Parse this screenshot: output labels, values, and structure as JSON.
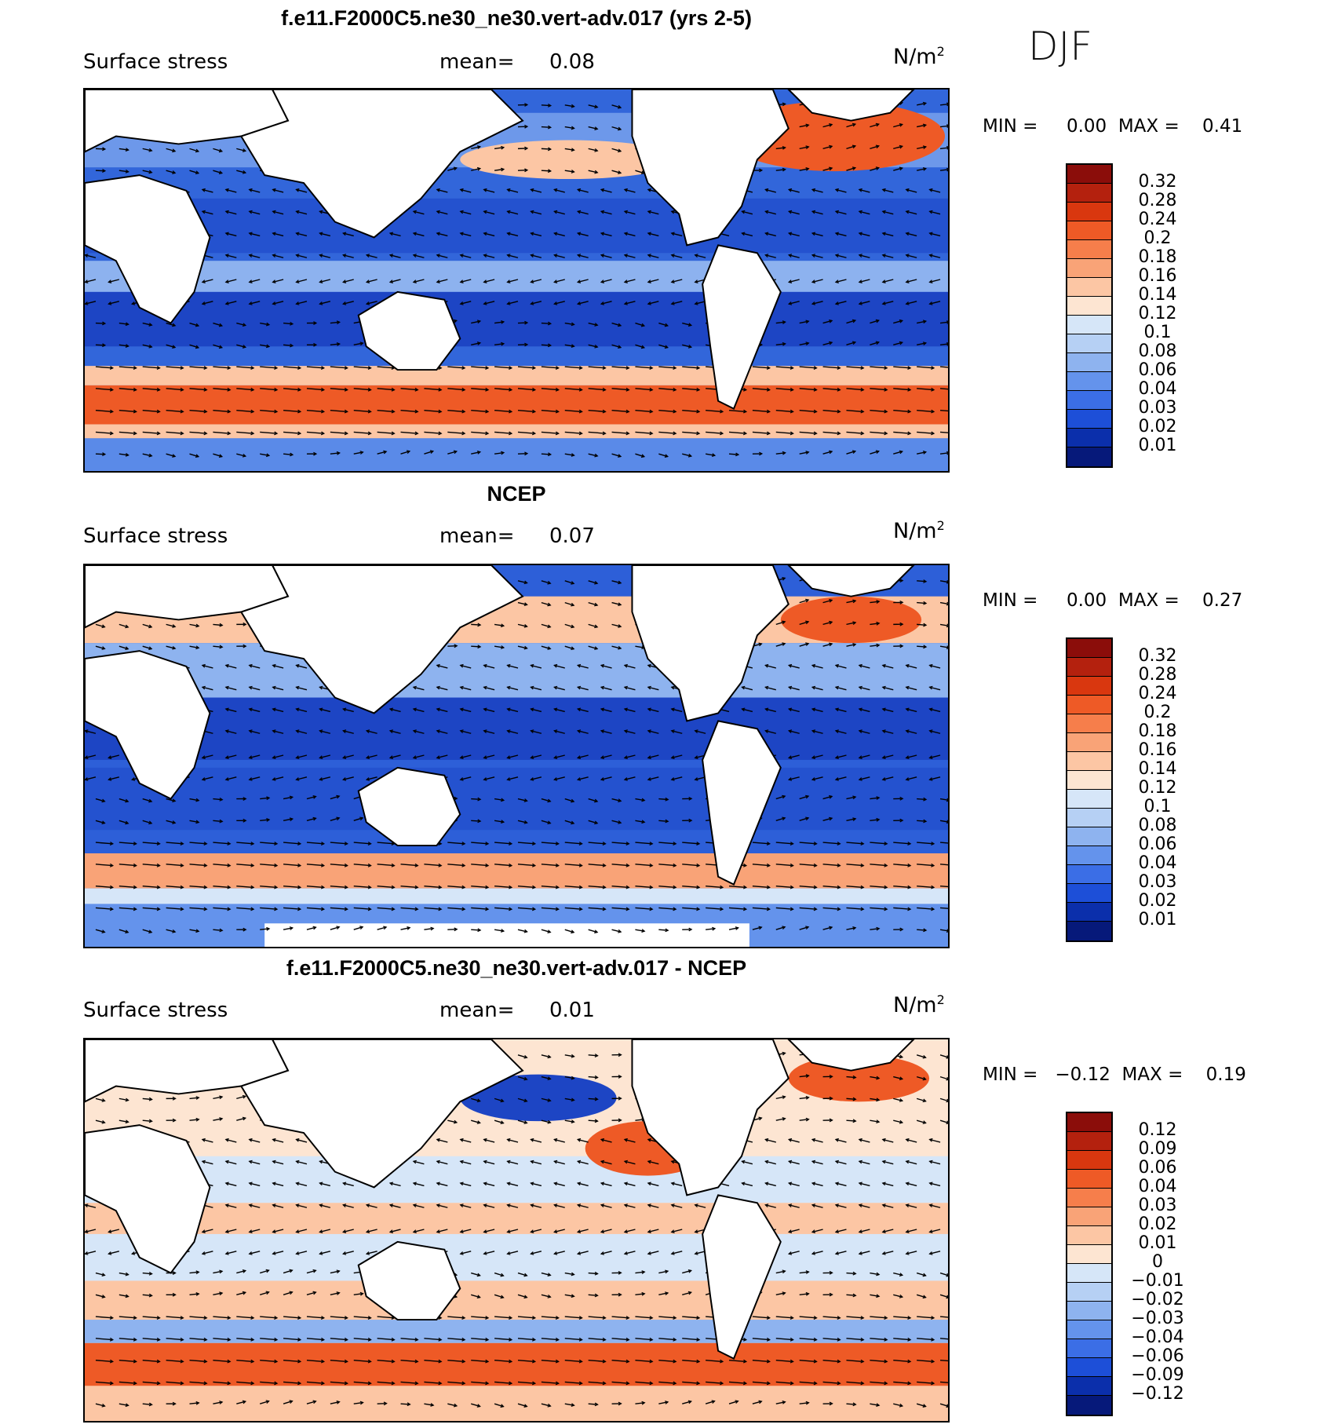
{
  "season": "DJF",
  "units_base": "N/m",
  "units_exp": "2",
  "panels": [
    {
      "title": "f.e11.F2000C5.ne30_ne30.vert-adv.017 (yrs 2-5)",
      "field": "Surface stress",
      "mean_label": "mean=",
      "mean": "0.08",
      "min_label": "MIN =",
      "min": "0.00",
      "max_label": "MAX =",
      "max": "0.41",
      "levels": [
        "0.32",
        "0.28",
        "0.24",
        "0.2",
        "0.18",
        "0.16",
        "0.14",
        "0.12",
        "0.1",
        "0.08",
        "0.06",
        "0.04",
        "0.03",
        "0.02",
        "0.01"
      ],
      "colors": [
        "#8b0d0a",
        "#b4210e",
        "#d9370f",
        "#ee5a26",
        "#f67e4b",
        "#f9a377",
        "#fcc6a4",
        "#fde5d2",
        "#d6e6f8",
        "#b6d0f4",
        "#8eb3ef",
        "#6493ec",
        "#3b6ee6",
        "#1d4fd8",
        "#0b2fab",
        "#06197a"
      ]
    },
    {
      "title": "NCEP",
      "field": "Surface stress",
      "mean_label": "mean=",
      "mean": "0.07",
      "min_label": "MIN =",
      "min": "0.00",
      "max_label": "MAX =",
      "max": "0.27",
      "levels": [
        "0.32",
        "0.28",
        "0.24",
        "0.2",
        "0.18",
        "0.16",
        "0.14",
        "0.12",
        "0.1",
        "0.08",
        "0.06",
        "0.04",
        "0.03",
        "0.02",
        "0.01"
      ],
      "colors": [
        "#8b0d0a",
        "#b4210e",
        "#d9370f",
        "#ee5a26",
        "#f67e4b",
        "#f9a377",
        "#fcc6a4",
        "#fde5d2",
        "#d6e6f8",
        "#b6d0f4",
        "#8eb3ef",
        "#6493ec",
        "#3b6ee6",
        "#1d4fd8",
        "#0b2fab",
        "#06197a"
      ]
    },
    {
      "title": "f.e11.F2000C5.ne30_ne30.vert-adv.017 - NCEP",
      "field": "Surface stress",
      "mean_label": "mean=",
      "mean": "0.01",
      "min_label": "MIN =",
      "min": "−0.12",
      "max_label": "MAX =",
      "max": "0.19",
      "levels": [
        "0.12",
        "0.09",
        "0.06",
        "0.04",
        "0.03",
        "0.02",
        "0.01",
        "0",
        "−0.01",
        "−0.02",
        "−0.03",
        "−0.04",
        "−0.06",
        "−0.09",
        "−0.12"
      ],
      "colors": [
        "#8b0d0a",
        "#b4210e",
        "#d9370f",
        "#ee5a26",
        "#f67e4b",
        "#f9a377",
        "#fcc6a4",
        "#fde5d2",
        "#d6e6f8",
        "#b6d0f4",
        "#8eb3ef",
        "#6493ec",
        "#3b6ee6",
        "#1d4fd8",
        "#0b2fab",
        "#06197a"
      ]
    }
  ]
}
